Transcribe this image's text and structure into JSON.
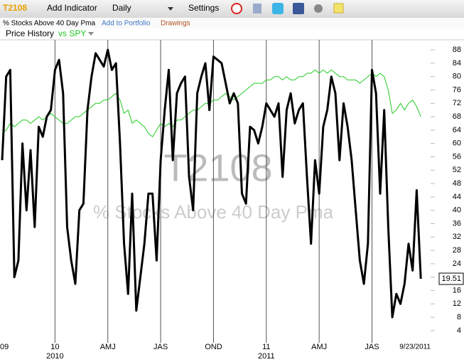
{
  "toolbar": {
    "symbol": "T2108",
    "add_indicator": "Add Indicator",
    "interval": "Daily",
    "settings": "Settings",
    "description": "% Stocks Above 40 Day Pma",
    "add_to_portfolio": "Add to Portfolio",
    "drawings": "Drawings"
  },
  "chart_data": {
    "type": "line",
    "watermark": "T2108",
    "watermark_subtitle": "% Stocks Above 40 Day Pma",
    "categories": [
      "09",
      null,
      null,
      null,
      null,
      null,
      null,
      null,
      null,
      null,
      null,
      null,
      null,
      "10",
      null,
      null,
      null,
      null,
      null,
      null,
      null,
      null,
      null,
      null,
      null,
      null,
      "AMJ",
      null,
      null,
      null,
      null,
      null,
      null,
      null,
      null,
      null,
      null,
      null,
      null,
      "JAS",
      null,
      null,
      null,
      null,
      null,
      null,
      null,
      null,
      null,
      null,
      null,
      null,
      "OND",
      null,
      null,
      null,
      null,
      null,
      null,
      null,
      null,
      null,
      null,
      null,
      null,
      "11",
      null,
      null,
      null,
      null,
      null,
      null,
      null,
      null,
      null,
      null,
      null,
      null,
      "AMJ",
      null,
      null,
      null,
      null,
      null,
      null,
      null,
      null,
      null,
      null,
      null,
      null,
      "JAS",
      null,
      null,
      null,
      null,
      null,
      null,
      null,
      null,
      null,
      null,
      null,
      "9/23/2011"
    ],
    "year_ticks": [
      {
        "value": 13,
        "label": "2010"
      },
      {
        "value": 65,
        "label": "2011"
      }
    ],
    "series": [
      {
        "name": "Price History",
        "color": "#000000",
        "values": [
          55,
          80,
          82,
          20,
          25,
          60,
          40,
          58,
          35,
          65,
          62,
          68,
          70,
          82,
          85,
          75,
          35,
          25,
          18,
          40,
          42,
          70,
          80,
          87,
          85,
          83,
          88,
          82,
          84,
          60,
          30,
          15,
          45,
          10,
          20,
          30,
          45,
          45,
          25,
          55,
          70,
          82,
          55,
          75,
          78,
          80,
          50,
          40,
          75,
          80,
          84,
          70,
          86,
          85,
          84,
          78,
          72,
          75,
          72,
          45,
          42,
          65,
          64,
          60,
          65,
          72,
          70,
          68,
          72,
          50,
          70,
          75,
          66,
          70,
          72,
          50,
          30,
          55,
          45,
          65,
          70,
          80,
          75,
          55,
          72,
          65,
          55,
          40,
          25,
          18,
          30,
          82,
          75,
          45,
          70,
          35,
          8,
          15,
          12,
          18,
          30,
          22,
          46,
          19.51
        ]
      },
      {
        "name": "vs SPY",
        "color": "#22cc22",
        "values": [
          63,
          64,
          66,
          65,
          66,
          67,
          67,
          66,
          67,
          68,
          67,
          68,
          69,
          68,
          67,
          66,
          66,
          67,
          68,
          68,
          69,
          70,
          71,
          72,
          72,
          73,
          73,
          74,
          75,
          73,
          69,
          70,
          66,
          67,
          66,
          65,
          63,
          62,
          64,
          66,
          65,
          66,
          65,
          67,
          67,
          68,
          69,
          70,
          70,
          71,
          72,
          72,
          73,
          73,
          74,
          75,
          74,
          73,
          74,
          75,
          76,
          77,
          78,
          78,
          78,
          79,
          79,
          80,
          80,
          79,
          80,
          79,
          79,
          80,
          80,
          81,
          81,
          82,
          81,
          82,
          81,
          82,
          81,
          80,
          80,
          79,
          79,
          79,
          78,
          79,
          80,
          81,
          80,
          81,
          80,
          76,
          69,
          70,
          72,
          70,
          72,
          73,
          71,
          68
        ]
      }
    ],
    "ylim": [
      1,
      91
    ],
    "yticks": [
      4,
      8,
      12,
      16,
      20,
      24,
      28,
      32,
      36,
      40,
      44,
      48,
      52,
      56,
      60,
      64,
      68,
      72,
      76,
      80,
      84,
      88
    ],
    "grid": true
  }
}
